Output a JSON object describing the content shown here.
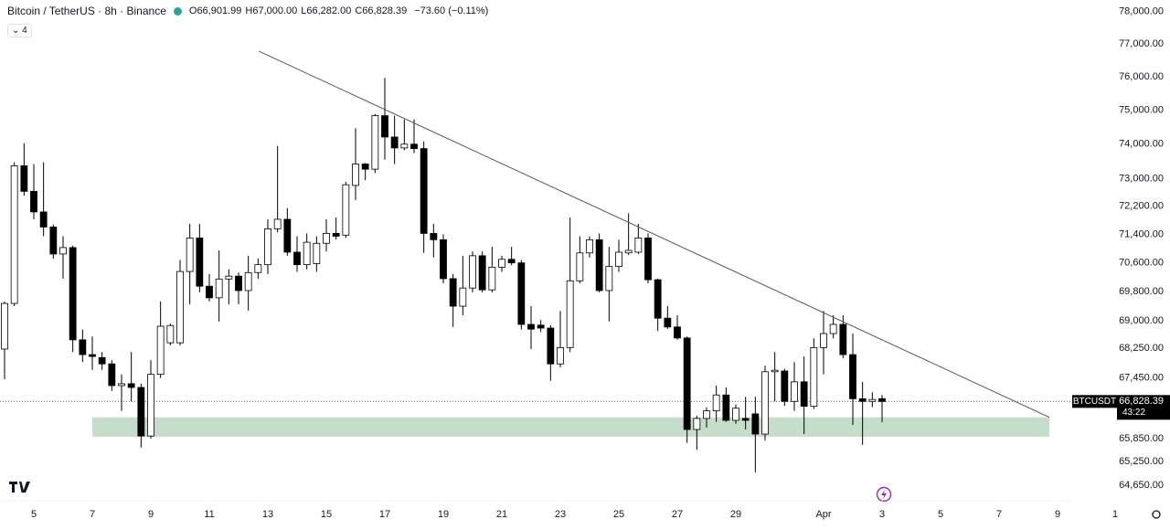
{
  "chart_data": {
    "type": "candlestick",
    "title": "Bitcoin / TetherUS · 8h · Binance",
    "header_ohlc": [
      {
        "label": "O",
        "value": "66,901.99"
      },
      {
        "label": "H",
        "value": "67,000.00"
      },
      {
        "label": "L",
        "value": "66,282.00"
      },
      {
        "label": "C",
        "value": "66,828.39"
      }
    ],
    "change": "−73.60 (−0.11%)",
    "indicator_count": "4",
    "log_scale": true,
    "up_color": "#ffffff",
    "down_color": "#000000",
    "x": [
      4,
      4.333,
      4.667,
      5,
      5.333,
      5.667,
      6,
      6.333,
      6.667,
      7,
      7.333,
      7.667,
      8,
      8.333,
      8.667,
      9,
      9.333,
      9.667,
      10,
      10.333,
      10.667,
      11,
      11.333,
      11.667,
      12,
      12.333,
      12.667,
      13,
      13.333,
      13.667,
      14,
      14.333,
      14.667,
      15,
      15.333,
      15.667,
      16,
      16.333,
      16.667,
      17,
      17.333,
      17.667,
      18,
      18.333,
      18.667,
      19,
      19.333,
      19.667,
      20,
      20.333,
      20.667,
      21,
      21.333,
      21.667,
      22,
      22.333,
      22.667,
      23,
      23.333,
      23.667,
      24,
      24.333,
      24.667,
      25,
      25.333,
      25.667,
      26,
      26.333,
      26.667,
      27,
      27.333,
      27.667,
      28,
      28.333,
      28.667,
      29,
      29.333,
      29.667,
      30,
      30.333,
      30.667,
      31,
      31.333,
      31.667,
      32,
      32.333,
      32.667,
      33,
      33.333,
      33.667,
      34
    ],
    "open": [
      68230,
      69475,
      73370,
      72630,
      72040,
      71610,
      70850,
      71030,
      68480,
      68080,
      68000,
      67830,
      67250,
      67300,
      67200,
      65920,
      67550,
      68400,
      68400,
      70360,
      71300,
      69950,
      69630,
      70150,
      70230,
      69830,
      70330,
      70550,
      71560,
      71830,
      70900,
      70550,
      70580,
      71150,
      71430,
      71380,
      72800,
      73420,
      73270,
      74840,
      74210,
      73890,
      74000,
      73870,
      71430,
      71250,
      70160,
      69400,
      69900,
      70800,
      69850,
      70480,
      70700,
      70600,
      68900,
      68880,
      68800,
      67830,
      68270,
      70100,
      70880,
      71250,
      69830,
      70500,
      70880,
      70900,
      71300,
      70130,
      69070,
      68830,
      68530,
      66090,
      66380,
      66580,
      67000,
      66330,
      66380,
      66500,
      65970,
      67620,
      67640,
      66830,
      67350,
      66700,
      68270,
      68650,
      68900,
      68080,
      66900,
      66830,
      66901.99
    ],
    "high": [
      69525,
      73470,
      74030,
      73420,
      73470,
      71680,
      71350,
      71080,
      68760,
      68570,
      68150,
      67930,
      67550,
      68150,
      67300,
      67930,
      69530,
      68920,
      70680,
      71700,
      71700,
      70290,
      70950,
      70420,
      70330,
      70800,
      70720,
      71830,
      73950,
      72150,
      71350,
      71430,
      71350,
      71830,
      71880,
      72900,
      74470,
      73450,
      74890,
      75970,
      74840,
      74730,
      74730,
      74080,
      71700,
      71400,
      70290,
      70800,
      70920,
      70920,
      71050,
      70800,
      71050,
      70680,
      69400,
      69020,
      68880,
      69270,
      71880,
      71350,
      71350,
      71430,
      71050,
      71250,
      72000,
      71700,
      71430,
      70160,
      69400,
      69150,
      68570,
      66450,
      66670,
      67250,
      67200,
      66750,
      66950,
      66950,
      67780,
      68150,
      67700,
      67880,
      68030,
      68520,
      69270,
      69150,
      69150,
      68650,
      67350,
      67070,
      67000
    ],
    "low": [
      67420,
      69400,
      72500,
      71830,
      71350,
      70720,
      70160,
      68150,
      67880,
      67670,
      67670,
      67110,
      66580,
      66830,
      65620,
      65850,
      67450,
      68330,
      68330,
      69450,
      69780,
      69530,
      68980,
      69450,
      69450,
      69280,
      70160,
      70290,
      71460,
      70800,
      70350,
      70420,
      70350,
      70920,
      71260,
      71300,
      72380,
      72950,
      73160,
      73550,
      73420,
      73820,
      73740,
      70880,
      70750,
      70030,
      68830,
      69150,
      69780,
      69780,
      69780,
      70350,
      70540,
      68760,
      68230,
      68690,
      67380,
      67740,
      68150,
      70030,
      70750,
      69780,
      68980,
      70350,
      70820,
      70850,
      70030,
      68720,
      68780,
      68480,
      65740,
      65560,
      66140,
      66290,
      66290,
      66240,
      66090,
      64980,
      65800,
      66830,
      66710,
      66580,
      65970,
      66630,
      67550,
      68520,
      67980,
      66210,
      65690,
      66680,
      66282
    ],
    "close": [
      69475,
      73370,
      72630,
      72040,
      71610,
      70850,
      71030,
      68480,
      68080,
      68030,
      67830,
      67250,
      67300,
      67200,
      65920,
      67550,
      68850,
      68870,
      70360,
      71300,
      69950,
      69630,
      70150,
      70230,
      69830,
      70330,
      70550,
      71560,
      71830,
      70900,
      70550,
      71180,
      71150,
      71430,
      71350,
      72820,
      73420,
      73270,
      74840,
      74210,
      73890,
      74000,
      73870,
      71430,
      71250,
      70160,
      69400,
      69900,
      70800,
      69850,
      70480,
      70700,
      70600,
      68900,
      68770,
      68800,
      67830,
      68270,
      70100,
      70880,
      71250,
      69830,
      70500,
      70900,
      70950,
      71300,
      70130,
      69070,
      68830,
      68530,
      66090,
      66380,
      66580,
      67000,
      66330,
      66650,
      66330,
      65970,
      67620,
      67660,
      66830,
      67350,
      66700,
      68270,
      68650,
      68900,
      68080,
      66900,
      66830,
      66880,
      66828.39
    ],
    "last_price": {
      "symbol": "BTCUSDT",
      "value": 66828.39,
      "label": "66,828.39",
      "countdown": "43:22"
    },
    "trendline": {
      "x": [
        12.69,
        39.72
      ],
      "y": [
        76780,
        66410
      ],
      "color": "#555555"
    },
    "zone": {
      "x": [
        7,
        39.72
      ],
      "y": [
        65900,
        66410
      ],
      "color": "#c2dcc8"
    },
    "xlim": [
      3.84375,
      40.40625
    ],
    "xticks": [
      5,
      7,
      9,
      11,
      13,
      15,
      17,
      19,
      21,
      23,
      25,
      27,
      29,
      {
        "value": 32,
        "label": "Apr"
      },
      {
        "value": 34,
        "label": "3"
      },
      {
        "value": 36,
        "label": "5"
      },
      {
        "value": 38,
        "label": "7"
      },
      {
        "value": 40,
        "label": "9"
      }
    ],
    "ylim": [
      64250,
      78350
    ],
    "yticks": [
      {
        "value": 78000,
        "label": "78,000.00"
      },
      {
        "value": 77000,
        "label": "77,000.00"
      },
      {
        "value": 76000,
        "label": "76,000.00"
      },
      {
        "value": 75000,
        "label": "75,000.00"
      },
      {
        "value": 74000,
        "label": "74,000.00"
      },
      {
        "value": 73000,
        "label": "73,000.00"
      },
      {
        "value": 72200,
        "label": "72,200.00"
      },
      {
        "value": 71400,
        "label": "71,400.00"
      },
      {
        "value": 70600,
        "label": "70,600.00"
      },
      {
        "value": 69800,
        "label": "69,800.00"
      },
      {
        "value": 69000,
        "label": "69,000.00"
      },
      {
        "value": 68250,
        "label": "68,250.00"
      },
      {
        "value": 67450,
        "label": "67,450.00"
      },
      {
        "value": 65850,
        "label": "65,850.00"
      },
      {
        "value": 65250,
        "label": "65,250.00"
      },
      {
        "value": 64650,
        "label": "64,650.00"
      }
    ],
    "footer_label": "1"
  }
}
